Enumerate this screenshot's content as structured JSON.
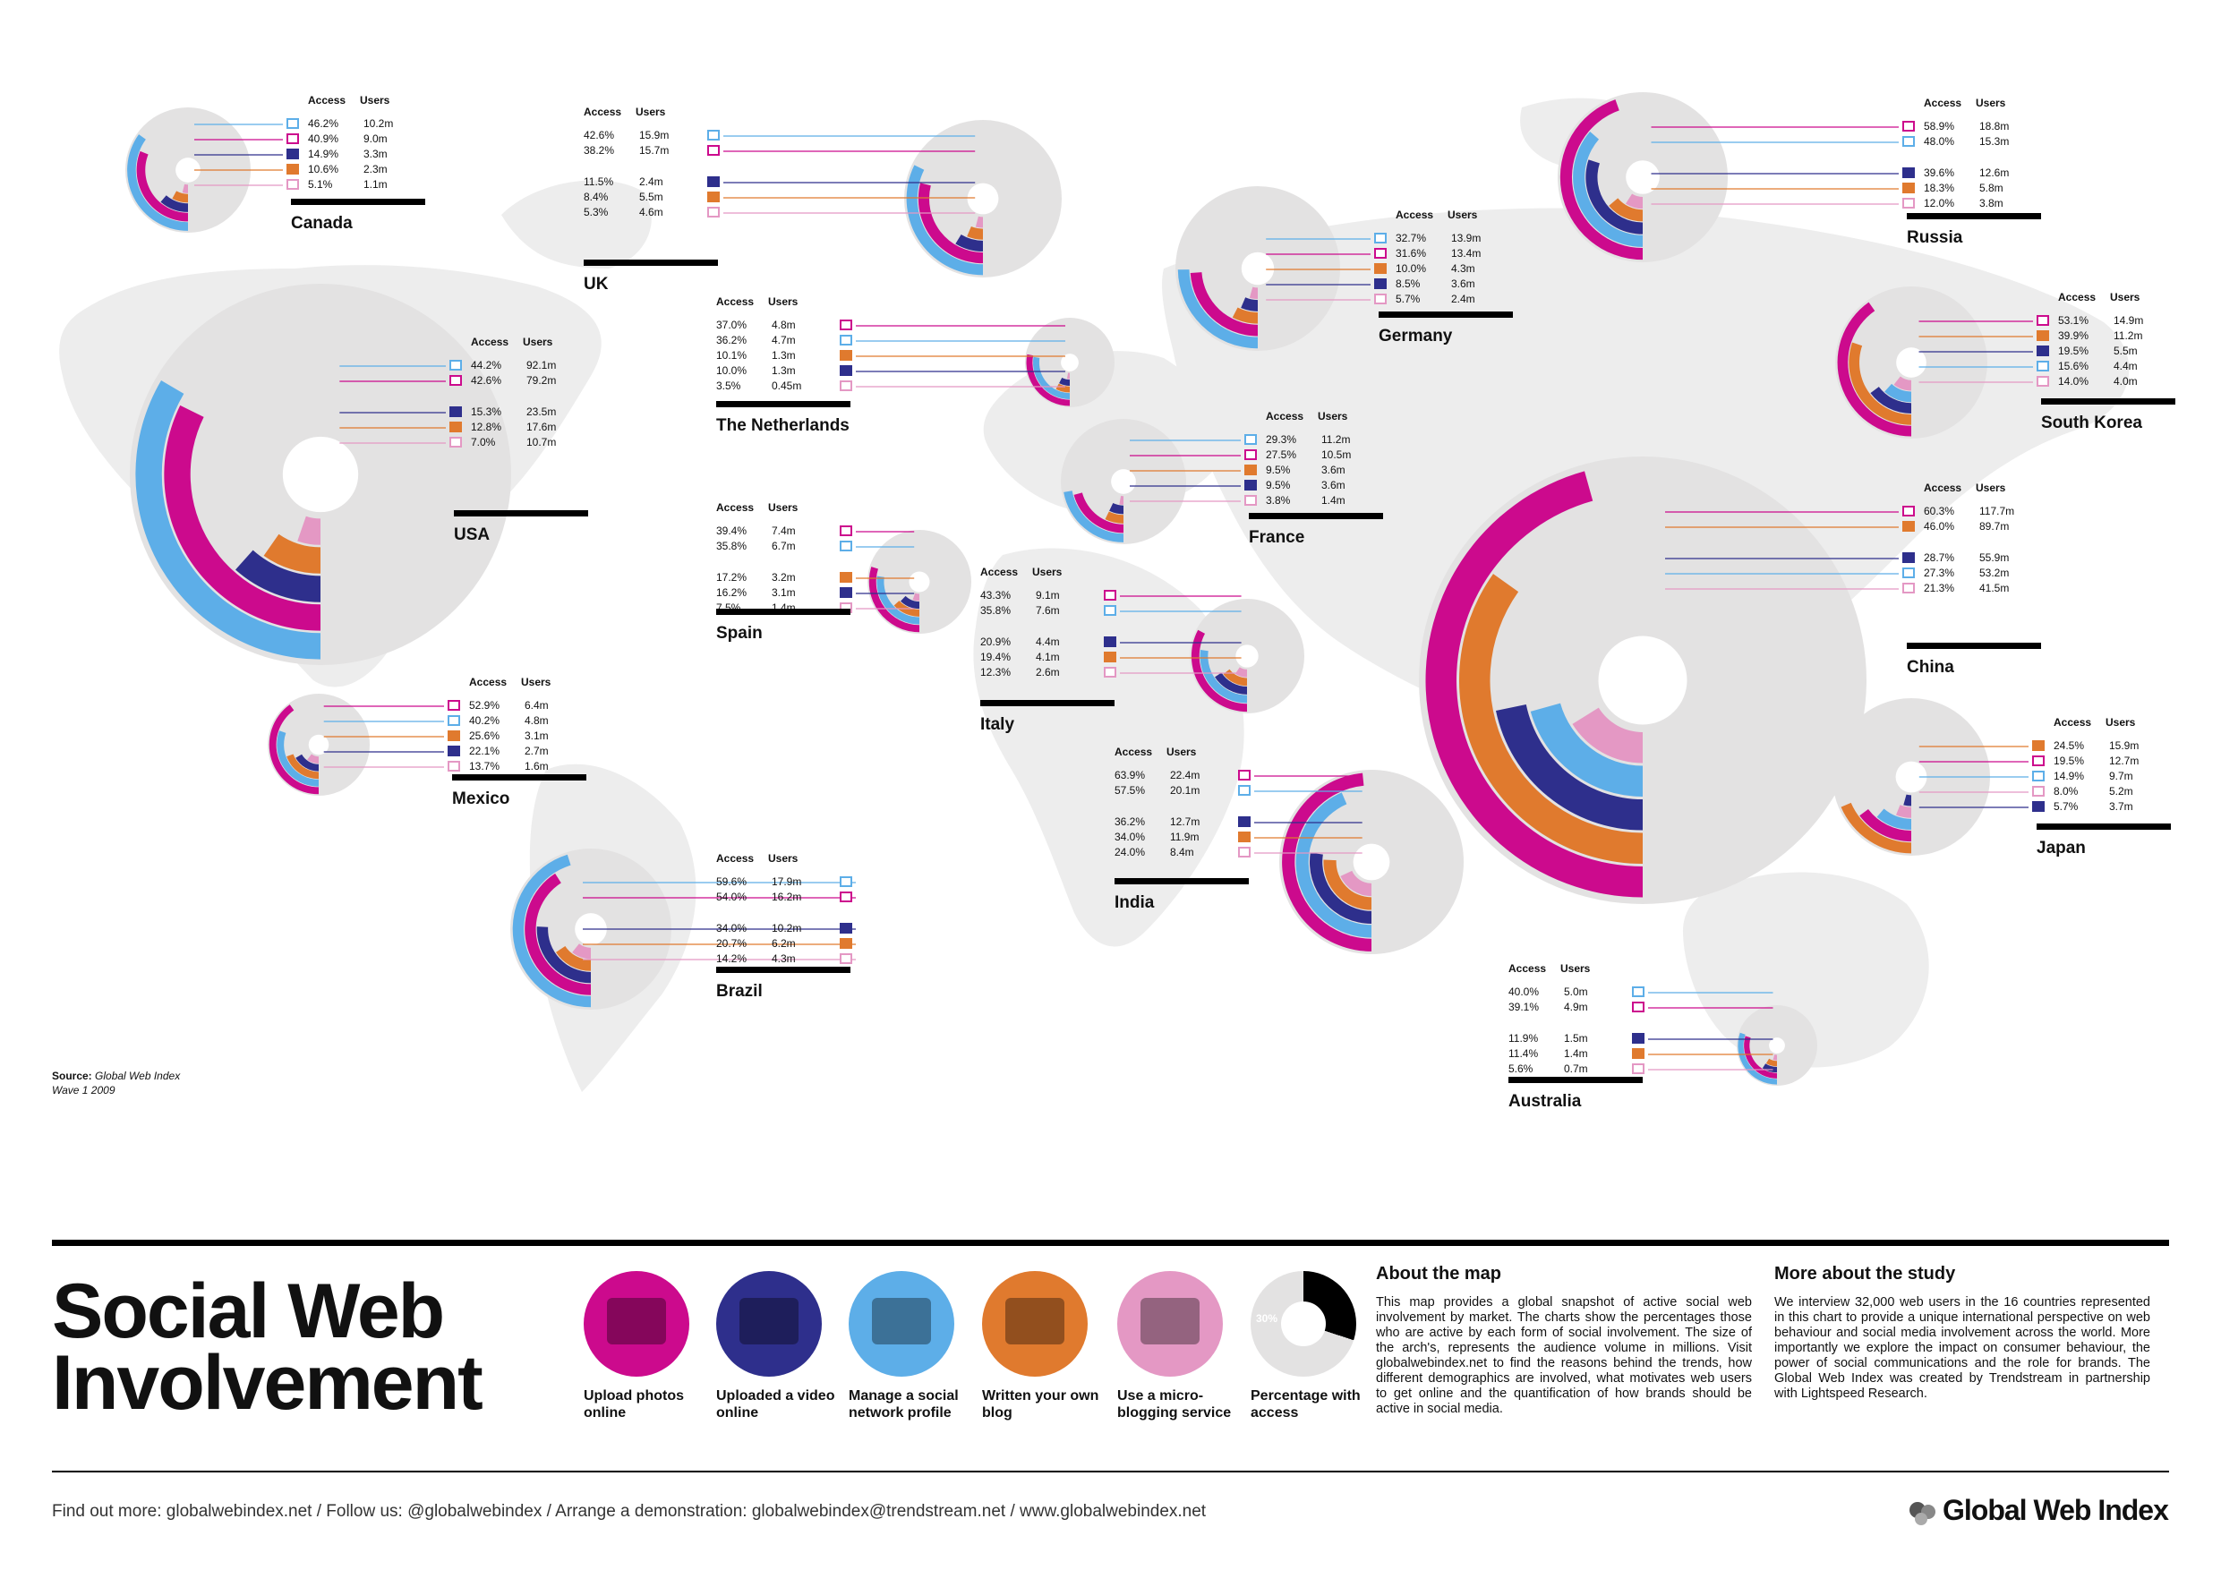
{
  "colors": {
    "upload_photos": "#cc0a8d",
    "upload_video": "#2e2f8c",
    "social_profile": "#5daee8",
    "blog": "#e07a2e",
    "micro": "#e498c4",
    "access": "#e3e2e2",
    "map": "#ededed"
  },
  "legend": [
    {
      "key": "upload_photos",
      "label": "Upload photos online",
      "icon": "photo-icon"
    },
    {
      "key": "upload_video",
      "label": "Uploaded a video online",
      "icon": "video-icon"
    },
    {
      "key": "social_profile",
      "label": "Manage a social network profile",
      "icon": "profile-icon"
    },
    {
      "key": "blog",
      "label": "Written your own blog",
      "icon": "blog-icon"
    },
    {
      "key": "micro",
      "label": "Use a micro-blogging service",
      "icon": "micro-icon"
    },
    {
      "key": "access",
      "label": "Percentage with access",
      "icon": "access-icon",
      "sample": "30%"
    }
  ],
  "headers": {
    "access": "Access",
    "users": "Users"
  },
  "chart_data": {
    "type": "pie",
    "title": "Social Web Involvement",
    "markets": [
      {
        "name": "Canada",
        "rows": [
          {
            "k": "social_profile",
            "a": "46.2%",
            "u": "10.2m"
          },
          {
            "k": "upload_photos",
            "a": "40.9%",
            "u": "9.0m"
          },
          {
            "k": "upload_video",
            "a": "14.9%",
            "u": "3.3m"
          },
          {
            "k": "blog",
            "a": "10.6%",
            "u": "2.3m"
          },
          {
            "k": "micro",
            "a": "5.1%",
            "u": "1.1m"
          }
        ]
      },
      {
        "name": "UK",
        "rows": [
          {
            "k": "social_profile",
            "a": "42.6%",
            "u": "15.9m"
          },
          {
            "k": "upload_photos",
            "a": "38.2%",
            "u": "15.7m"
          },
          {
            "k": "upload_video",
            "a": "11.5%",
            "u": "2.4m"
          },
          {
            "k": "blog",
            "a": "8.4%",
            "u": "5.5m"
          },
          {
            "k": "micro",
            "a": "5.3%",
            "u": "4.6m"
          }
        ]
      },
      {
        "name": "The Netherlands",
        "rows": [
          {
            "k": "upload_photos",
            "a": "37.0%",
            "u": "4.8m"
          },
          {
            "k": "social_profile",
            "a": "36.2%",
            "u": "4.7m"
          },
          {
            "k": "blog",
            "a": "10.1%",
            "u": "1.3m"
          },
          {
            "k": "upload_video",
            "a": "10.0%",
            "u": "1.3m"
          },
          {
            "k": "micro",
            "a": "3.5%",
            "u": "0.45m"
          }
        ]
      },
      {
        "name": "USA",
        "rows": [
          {
            "k": "social_profile",
            "a": "44.2%",
            "u": "92.1m"
          },
          {
            "k": "upload_photos",
            "a": "42.6%",
            "u": "79.2m"
          },
          {
            "k": "upload_video",
            "a": "15.3%",
            "u": "23.5m"
          },
          {
            "k": "blog",
            "a": "12.8%",
            "u": "17.6m"
          },
          {
            "k": "micro",
            "a": "7.0%",
            "u": "10.7m"
          }
        ]
      },
      {
        "name": "Germany",
        "rows": [
          {
            "k": "social_profile",
            "a": "32.7%",
            "u": "13.9m"
          },
          {
            "k": "upload_photos",
            "a": "31.6%",
            "u": "13.4m"
          },
          {
            "k": "blog",
            "a": "10.0%",
            "u": "4.3m"
          },
          {
            "k": "upload_video",
            "a": "8.5%",
            "u": "3.6m"
          },
          {
            "k": "micro",
            "a": "5.7%",
            "u": "2.4m"
          }
        ]
      },
      {
        "name": "France",
        "rows": [
          {
            "k": "social_profile",
            "a": "29.3%",
            "u": "11.2m"
          },
          {
            "k": "upload_photos",
            "a": "27.5%",
            "u": "10.5m"
          },
          {
            "k": "blog",
            "a": "9.5%",
            "u": "3.6m"
          },
          {
            "k": "upload_video",
            "a": "9.5%",
            "u": "3.6m"
          },
          {
            "k": "micro",
            "a": "3.8%",
            "u": "1.4m"
          }
        ]
      },
      {
        "name": "Spain",
        "rows": [
          {
            "k": "upload_photos",
            "a": "39.4%",
            "u": "7.4m"
          },
          {
            "k": "social_profile",
            "a": "35.8%",
            "u": "6.7m"
          },
          {
            "k": "blog",
            "a": "17.2%",
            "u": "3.2m"
          },
          {
            "k": "upload_video",
            "a": "16.2%",
            "u": "3.1m"
          },
          {
            "k": "micro",
            "a": "7.5%",
            "u": "1.4m"
          }
        ]
      },
      {
        "name": "Italy",
        "rows": [
          {
            "k": "upload_photos",
            "a": "43.3%",
            "u": "9.1m"
          },
          {
            "k": "social_profile",
            "a": "35.8%",
            "u": "7.6m"
          },
          {
            "k": "upload_video",
            "a": "20.9%",
            "u": "4.4m"
          },
          {
            "k": "blog",
            "a": "19.4%",
            "u": "4.1m"
          },
          {
            "k": "micro",
            "a": "12.3%",
            "u": "2.6m"
          }
        ]
      },
      {
        "name": "Mexico",
        "rows": [
          {
            "k": "upload_photos",
            "a": "52.9%",
            "u": "6.4m"
          },
          {
            "k": "social_profile",
            "a": "40.2%",
            "u": "4.8m"
          },
          {
            "k": "blog",
            "a": "25.6%",
            "u": "3.1m"
          },
          {
            "k": "upload_video",
            "a": "22.1%",
            "u": "2.7m"
          },
          {
            "k": "micro",
            "a": "13.7%",
            "u": "1.6m"
          }
        ]
      },
      {
        "name": "Brazil",
        "rows": [
          {
            "k": "social_profile",
            "a": "59.6%",
            "u": "17.9m"
          },
          {
            "k": "upload_photos",
            "a": "54.0%",
            "u": "16.2m"
          },
          {
            "k": "upload_video",
            "a": "34.0%",
            "u": "10.2m"
          },
          {
            "k": "blog",
            "a": "20.7%",
            "u": "6.2m"
          },
          {
            "k": "micro",
            "a": "14.2%",
            "u": "4.3m"
          }
        ]
      },
      {
        "name": "India",
        "rows": [
          {
            "k": "upload_photos",
            "a": "63.9%",
            "u": "22.4m"
          },
          {
            "k": "social_profile",
            "a": "57.5%",
            "u": "20.1m"
          },
          {
            "k": "upload_video",
            "a": "36.2%",
            "u": "12.7m"
          },
          {
            "k": "blog",
            "a": "34.0%",
            "u": "11.9m"
          },
          {
            "k": "micro",
            "a": "24.0%",
            "u": "8.4m"
          }
        ]
      },
      {
        "name": "Russia",
        "rows": [
          {
            "k": "upload_photos",
            "a": "58.9%",
            "u": "18.8m"
          },
          {
            "k": "social_profile",
            "a": "48.0%",
            "u": "15.3m"
          },
          {
            "k": "upload_video",
            "a": "39.6%",
            "u": "12.6m"
          },
          {
            "k": "blog",
            "a": "18.3%",
            "u": "5.8m"
          },
          {
            "k": "micro",
            "a": "12.0%",
            "u": "3.8m"
          }
        ]
      },
      {
        "name": "South Korea",
        "rows": [
          {
            "k": "upload_photos",
            "a": "53.1%",
            "u": "14.9m"
          },
          {
            "k": "blog",
            "a": "39.9%",
            "u": "11.2m"
          },
          {
            "k": "upload_video",
            "a": "19.5%",
            "u": "5.5m"
          },
          {
            "k": "social_profile",
            "a": "15.6%",
            "u": "4.4m"
          },
          {
            "k": "micro",
            "a": "14.0%",
            "u": "4.0m"
          }
        ]
      },
      {
        "name": "China",
        "rows": [
          {
            "k": "upload_photos",
            "a": "60.3%",
            "u": "117.7m"
          },
          {
            "k": "blog",
            "a": "46.0%",
            "u": "89.7m"
          },
          {
            "k": "upload_video",
            "a": "28.7%",
            "u": "55.9m"
          },
          {
            "k": "social_profile",
            "a": "27.3%",
            "u": "53.2m"
          },
          {
            "k": "micro",
            "a": "21.3%",
            "u": "41.5m"
          }
        ]
      },
      {
        "name": "Japan",
        "rows": [
          {
            "k": "blog",
            "a": "24.5%",
            "u": "15.9m"
          },
          {
            "k": "upload_photos",
            "a": "19.5%",
            "u": "12.7m"
          },
          {
            "k": "social_profile",
            "a": "14.9%",
            "u": "9.7m"
          },
          {
            "k": "micro",
            "a": "8.0%",
            "u": "5.2m"
          },
          {
            "k": "upload_video",
            "a": "5.7%",
            "u": "3.7m"
          }
        ]
      },
      {
        "name": "Australia",
        "rows": [
          {
            "k": "social_profile",
            "a": "40.0%",
            "u": "5.0m"
          },
          {
            "k": "upload_photos",
            "a": "39.1%",
            "u": "4.9m"
          },
          {
            "k": "upload_video",
            "a": "11.9%",
            "u": "1.5m"
          },
          {
            "k": "blog",
            "a": "11.4%",
            "u": "1.4m"
          },
          {
            "k": "micro",
            "a": "5.6%",
            "u": "0.7m"
          }
        ]
      }
    ]
  },
  "page": {
    "title_line1": "Social Web",
    "title_line2": "Involvement",
    "source_label": "Source:",
    "source_name": "Global Web Index",
    "source_wave": "Wave 1 2009",
    "about_title": "About the map",
    "about_text": "This map provides a global snapshot of active social web involvement by market. The charts show the percentages those who are active by each form of social involvement. The size of the arch's, represents the audience volume in millions. Visit globalwebindex.net to find the reasons behind the trends, how different demographics are involved, what motivates web users to get online and the quantification of how brands should be active in social media.",
    "study_title": "More about the study",
    "study_text": "We interview 32,000 web users in the 16 countries represented in this chart to provide a unique international perspective on web behaviour and social media involvement across the world. More importantly we explore the impact on consumer behaviour, the power of social communications and the role for brands. The Global Web Index was created by Trendstream in partnership with Lightspeed Research.",
    "footer": "Find out more: globalwebindex.net  /  Follow us: @globalwebindex  /  Arrange a demonstration: globalwebindex@trendstream.net  /  www.globalwebindex.net",
    "brand": "Global Web Index"
  }
}
